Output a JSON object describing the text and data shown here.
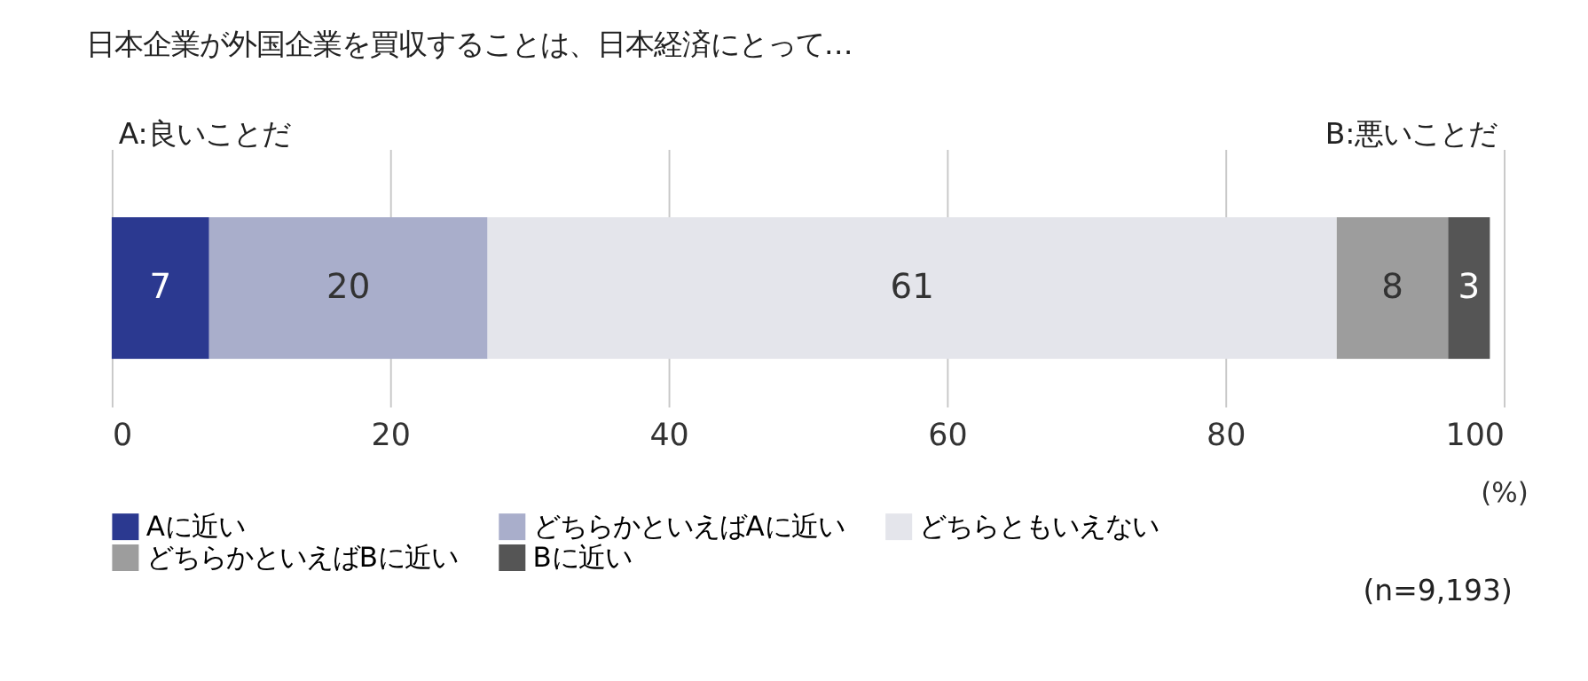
{
  "chart_data": {
    "type": "bar",
    "orientation": "horizontal",
    "stacked": true,
    "title": "日本企業が外国企業を買収することは、日本経済にとって…",
    "categories": [
      null
    ],
    "series": [
      {
        "name": "Aに近い",
        "color": "#2b3990",
        "values": [
          7
        ]
      },
      {
        "name": "どちらかといえばAに近い",
        "color": "#a9aecb",
        "values": [
          20
        ]
      },
      {
        "name": "どちらともいえない",
        "color": "#e4e5eb",
        "values": [
          61
        ]
      },
      {
        "name": "どちらかといえばBに近い",
        "color": "#9d9d9d",
        "values": [
          8
        ]
      },
      {
        "name": "Bに近い",
        "color": "#555555",
        "values": [
          3
        ]
      }
    ],
    "xlim": [
      0,
      100
    ],
    "xticks": [
      0,
      20,
      40,
      60,
      80,
      100
    ],
    "xlabel": "(%)",
    "annotations": [
      "A:良いことだ",
      "B:悪いことだ",
      "(n=9,193)"
    ],
    "data_labels": true,
    "grid": "x",
    "legend": "bottom"
  }
}
